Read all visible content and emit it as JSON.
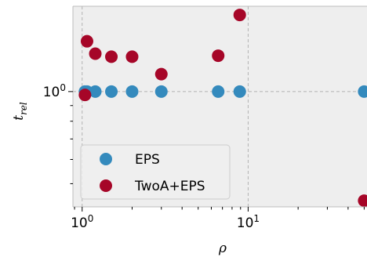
{
  "chart_data": {
    "type": "scatter",
    "xscale": "log",
    "yscale": "log",
    "xlim": [
      0.88,
      52
    ],
    "ylim": [
      0.42,
      1.9
    ],
    "xlabel": "ρ",
    "ylabel": "t_rel",
    "x_ticks": [
      {
        "value": 1,
        "base": "10",
        "exp": "0"
      },
      {
        "value": 10,
        "base": "10",
        "exp": "1"
      }
    ],
    "y_ticks": [
      {
        "value": 1,
        "base": "10",
        "exp": "0"
      }
    ],
    "grid": true,
    "legend_position": "lower-left",
    "series": [
      {
        "name": "EPS",
        "color": "#348abd",
        "points": [
          {
            "x": 1.04,
            "y": 1.0
          },
          {
            "x": 1.07,
            "y": 1.0
          },
          {
            "x": 1.2,
            "y": 1.0
          },
          {
            "x": 1.5,
            "y": 1.0
          },
          {
            "x": 2.0,
            "y": 1.0
          },
          {
            "x": 3.0,
            "y": 1.0
          },
          {
            "x": 6.6,
            "y": 1.0
          },
          {
            "x": 8.9,
            "y": 1.0
          },
          {
            "x": 50,
            "y": 1.0
          }
        ]
      },
      {
        "name": "TwoA+EPS",
        "color": "#a60628",
        "points": [
          {
            "x": 1.04,
            "y": 0.975
          },
          {
            "x": 1.07,
            "y": 1.46
          },
          {
            "x": 1.2,
            "y": 1.33
          },
          {
            "x": 1.5,
            "y": 1.3
          },
          {
            "x": 2.0,
            "y": 1.3
          },
          {
            "x": 3.0,
            "y": 1.14
          },
          {
            "x": 6.6,
            "y": 1.31
          },
          {
            "x": 8.9,
            "y": 1.78
          },
          {
            "x": 50,
            "y": 0.44
          }
        ]
      }
    ]
  }
}
